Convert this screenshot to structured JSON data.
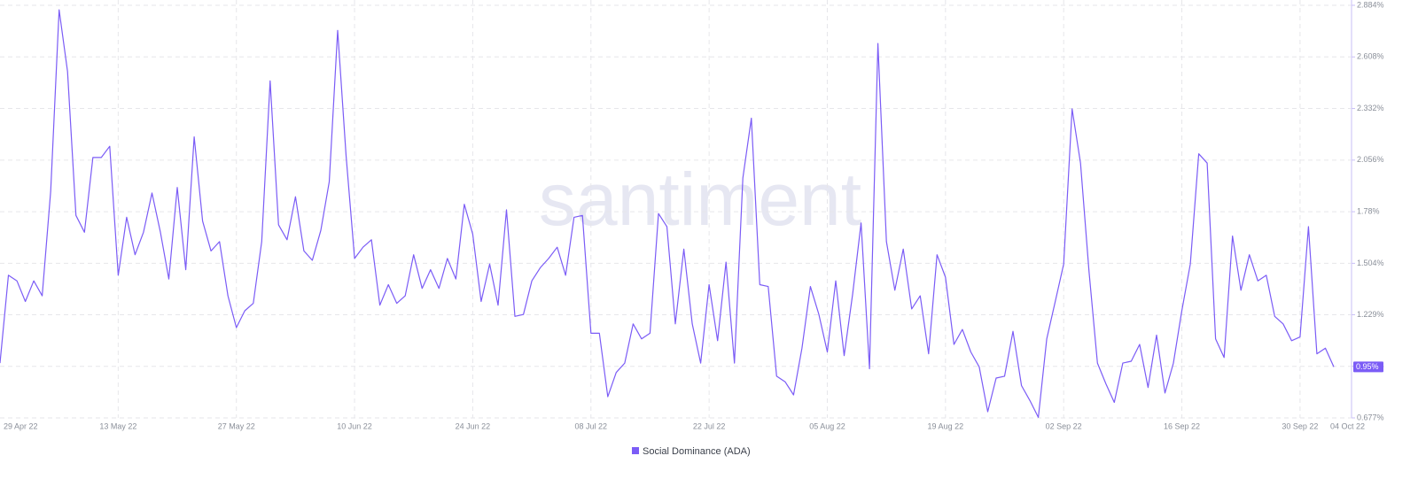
{
  "chart_data": {
    "type": "line",
    "watermark": "santiment",
    "categories": [
      "29 Apr 22",
      null,
      null,
      null,
      null,
      null,
      null,
      null,
      null,
      null,
      null,
      null,
      null,
      null,
      "13 May 22",
      null,
      null,
      null,
      null,
      null,
      null,
      null,
      null,
      null,
      null,
      null,
      null,
      null,
      "27 May 22",
      null,
      null,
      null,
      null,
      null,
      null,
      null,
      null,
      null,
      null,
      null,
      null,
      null,
      "10 Jun 22",
      null,
      null,
      null,
      null,
      null,
      null,
      null,
      null,
      null,
      null,
      null,
      null,
      null,
      "24 Jun 22",
      null,
      null,
      null,
      null,
      null,
      null,
      null,
      null,
      null,
      null,
      null,
      null,
      null,
      "08 Jul 22",
      null,
      null,
      null,
      null,
      null,
      null,
      null,
      null,
      null,
      null,
      null,
      null,
      null,
      "22 Jul 22",
      null,
      null,
      null,
      null,
      null,
      null,
      null,
      null,
      null,
      null,
      null,
      null,
      null,
      "05 Aug 22",
      null,
      null,
      null,
      null,
      null,
      null,
      null,
      null,
      null,
      null,
      null,
      null,
      null,
      "19 Aug 22",
      null,
      null,
      null,
      null,
      null,
      null,
      null,
      null,
      null,
      null,
      null,
      null,
      null,
      "02 Sep 22",
      null,
      null,
      null,
      null,
      null,
      null,
      null,
      null,
      null,
      null,
      null,
      null,
      null,
      "16 Sep 22",
      null,
      null,
      null,
      null,
      null,
      null,
      null,
      null,
      null,
      null,
      null,
      null,
      null,
      "30 Sep 22",
      null,
      null,
      null,
      "04 Oct 22"
    ],
    "series": [
      {
        "name": "Social Dominance (ADA)",
        "color": "#7b5cf6",
        "current_label": "0.95%",
        "values": [
          0.97,
          1.44,
          1.41,
          1.3,
          1.41,
          1.33,
          1.89,
          2.86,
          2.53,
          1.76,
          1.67,
          2.07,
          2.07,
          2.13,
          1.44,
          1.75,
          1.55,
          1.67,
          1.88,
          1.67,
          1.42,
          1.91,
          1.47,
          2.18,
          1.73,
          1.57,
          1.62,
          1.33,
          1.16,
          1.25,
          1.29,
          1.62,
          2.48,
          1.71,
          1.63,
          1.86,
          1.57,
          1.52,
          1.68,
          1.94,
          2.75,
          2.08,
          1.53,
          1.59,
          1.63,
          1.28,
          1.39,
          1.29,
          1.33,
          1.55,
          1.37,
          1.47,
          1.37,
          1.53,
          1.42,
          1.82,
          1.66,
          1.3,
          1.5,
          1.28,
          1.79,
          1.22,
          1.23,
          1.41,
          1.48,
          1.53,
          1.59,
          1.44,
          1.75,
          1.76,
          1.13,
          1.13,
          0.79,
          0.92,
          0.97,
          1.18,
          1.1,
          1.13,
          1.77,
          1.7,
          1.18,
          1.58,
          1.18,
          0.97,
          1.39,
          1.09,
          1.51,
          0.97,
          1.96,
          2.28,
          1.39,
          1.38,
          0.9,
          0.87,
          0.8,
          1.05,
          1.38,
          1.23,
          1.03,
          1.41,
          1.01,
          1.34,
          1.72,
          0.94,
          2.68,
          1.62,
          1.36,
          1.58,
          1.26,
          1.33,
          1.02,
          1.55,
          1.43,
          1.07,
          1.15,
          1.03,
          0.95,
          0.71,
          0.89,
          0.9,
          1.14,
          0.85,
          0.77,
          0.68,
          1.1,
          1.3,
          1.5,
          2.33,
          2.04,
          1.46,
          0.97,
          0.86,
          0.76,
          0.97,
          0.98,
          1.07,
          0.84,
          1.12,
          0.81,
          0.97,
          1.25,
          1.5,
          2.09,
          2.04,
          1.1,
          1.0,
          1.65,
          1.36,
          1.55,
          1.41,
          1.44,
          1.22,
          1.18,
          1.09,
          1.11,
          1.7,
          1.02,
          1.05,
          0.95
        ]
      }
    ],
    "ylim": [
      0.677,
      2.884
    ],
    "yticks": [
      {
        "value": 0.677,
        "label": "0.677%"
      },
      {
        "value": 0.953,
        "label": "0.953%"
      },
      {
        "value": 1.229,
        "label": "1.229%"
      },
      {
        "value": 1.504,
        "label": "1.504%"
      },
      {
        "value": 1.78,
        "label": "1.78%"
      },
      {
        "value": 2.056,
        "label": "2.056%"
      },
      {
        "value": 2.332,
        "label": "2.332%"
      },
      {
        "value": 2.608,
        "label": "2.608%"
      },
      {
        "value": 2.884,
        "label": "2.884%"
      }
    ],
    "grid": true,
    "legend": "bottom"
  }
}
